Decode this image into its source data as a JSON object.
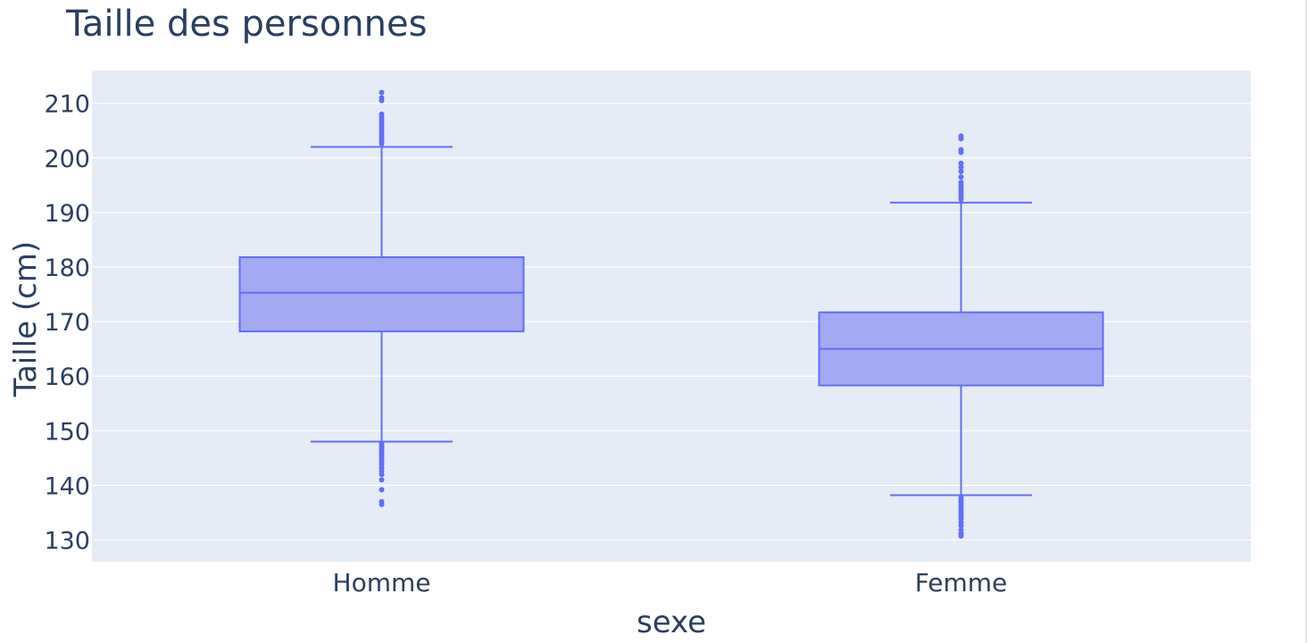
{
  "chart_data": {
    "type": "box",
    "title": "Taille des personnes",
    "xlabel": "sexe",
    "ylabel": "Taille (cm)",
    "ylim": [
      126,
      216
    ],
    "yticks": [
      130,
      140,
      150,
      160,
      170,
      180,
      190,
      200,
      210
    ],
    "grid": true,
    "colors": {
      "plot_bg": "#e5ecf6",
      "box_fill": "#a3a9f3",
      "box_line": "#636efa",
      "grid": "#ffffff",
      "text": "#2a3f5f"
    },
    "categories": [
      "Homme",
      "Femme"
    ],
    "boxes": [
      {
        "category": "Homme",
        "lowerfence": 148,
        "q1": 168.2,
        "median": 175.3,
        "q3": 181.8,
        "upperfence": 202,
        "outliers": [
          212,
          211,
          210.5,
          208,
          207.5,
          207,
          206.5,
          206,
          205.5,
          205,
          204.5,
          204,
          203.5,
          203,
          202.6,
          147.6,
          147.2,
          146.8,
          146.4,
          146,
          145.6,
          145.2,
          144.8,
          144.3,
          143.8,
          143.2,
          142.6,
          142,
          141,
          139.2,
          137,
          136.5
        ]
      },
      {
        "category": "Femme",
        "lowerfence": 138.2,
        "q1": 158.3,
        "median": 165,
        "q3": 171.7,
        "upperfence": 191.8,
        "outliers": [
          204,
          203.5,
          201.5,
          201,
          199,
          198.3,
          197.5,
          196.5,
          195.5,
          195,
          194.5,
          194,
          193.5,
          193,
          192.4,
          137.7,
          137.2,
          136.8,
          136.3,
          135.8,
          135.3,
          134.8,
          134.3,
          133.8,
          133.2,
          132.6,
          131.8,
          131.2,
          130.7
        ]
      }
    ]
  }
}
